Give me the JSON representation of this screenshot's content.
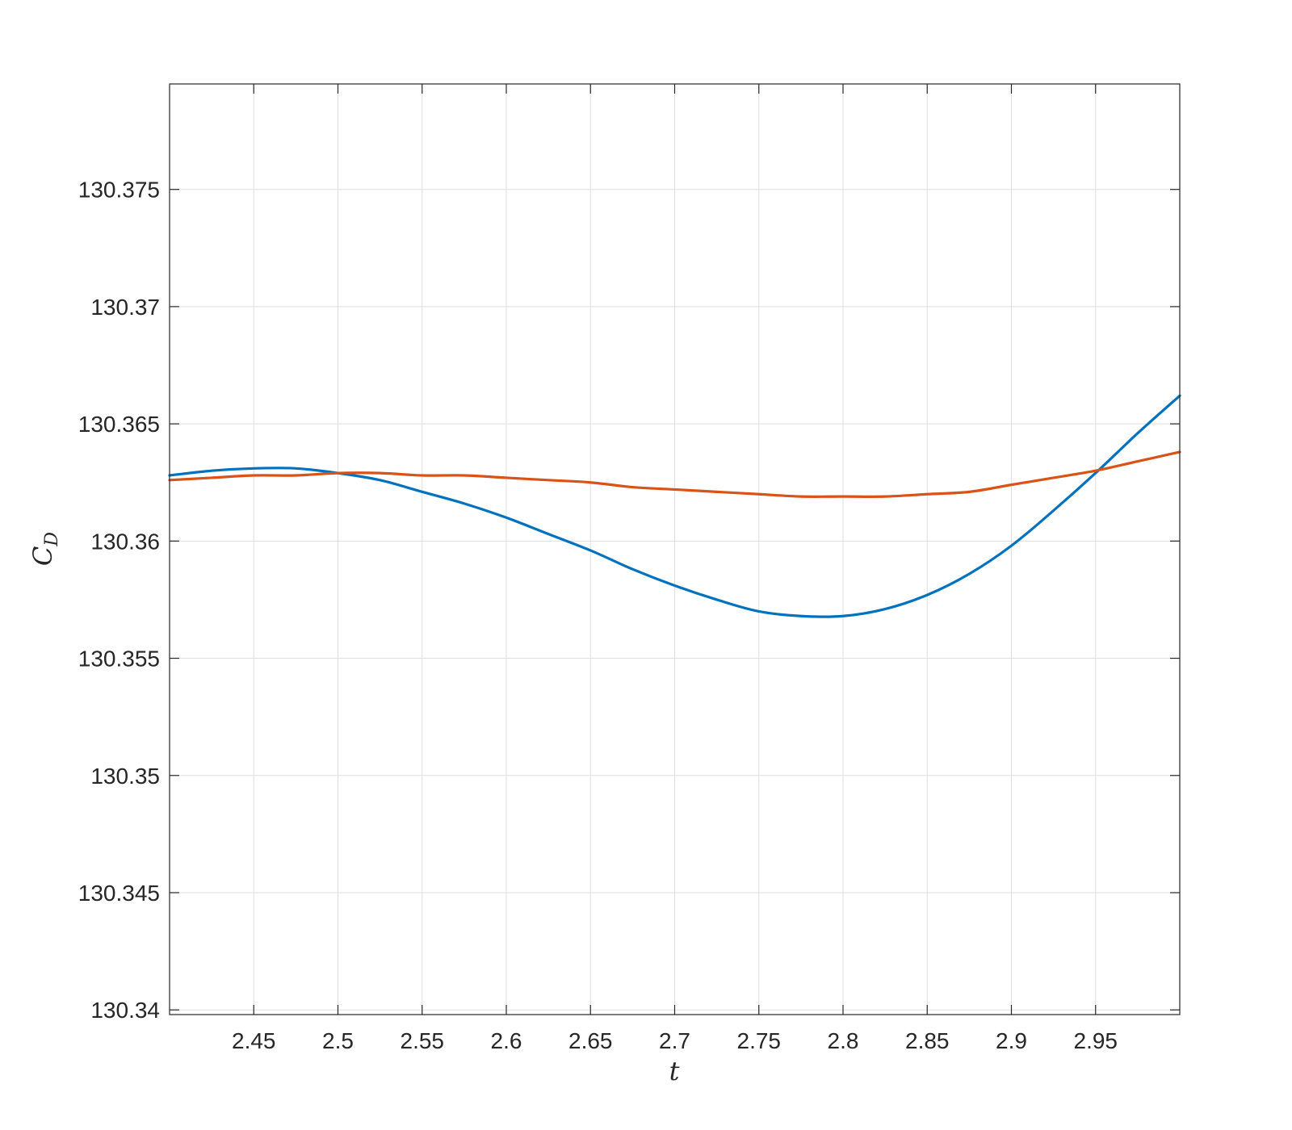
{
  "chart_data": {
    "type": "line",
    "title": "",
    "xlabel": "t",
    "ylabel_main": "C",
    "ylabel_sub": "D",
    "xlim": [
      2.4,
      3.0
    ],
    "ylim": [
      130.3398,
      130.3795
    ],
    "grid": true,
    "legend": "none",
    "xticks": [
      2.45,
      2.5,
      2.55,
      2.6,
      2.65,
      2.7,
      2.75,
      2.8,
      2.85,
      2.9,
      2.95
    ],
    "xtick_labels": [
      "2.45",
      "2.5",
      "2.55",
      "2.6",
      "2.65",
      "2.7",
      "2.75",
      "2.8",
      "2.85",
      "2.9",
      "2.95"
    ],
    "yticks": [
      130.34,
      130.345,
      130.35,
      130.355,
      130.36,
      130.365,
      130.37,
      130.375
    ],
    "ytick_labels": [
      "130.34",
      "130.345",
      "130.35",
      "130.355",
      "130.36",
      "130.365",
      "130.37",
      "130.375"
    ],
    "series": [
      {
        "color": "#0072bd",
        "x": [
          2.4,
          2.425,
          2.45,
          2.475,
          2.5,
          2.525,
          2.55,
          2.575,
          2.6,
          2.625,
          2.65,
          2.675,
          2.7,
          2.725,
          2.75,
          2.775,
          2.8,
          2.825,
          2.85,
          2.875,
          2.9,
          2.925,
          2.95,
          2.975,
          3.0
        ],
        "y": [
          130.3628,
          130.363,
          130.3631,
          130.3631,
          130.3629,
          130.3626,
          130.3621,
          130.3616,
          130.361,
          130.3603,
          130.3596,
          130.3588,
          130.3581,
          130.3575,
          130.357,
          130.3568,
          130.3568,
          130.3571,
          130.3577,
          130.3586,
          130.3598,
          130.3613,
          130.3629,
          130.3646,
          130.3662
        ]
      },
      {
        "color": "#d95319",
        "x": [
          2.4,
          2.425,
          2.45,
          2.475,
          2.5,
          2.525,
          2.55,
          2.575,
          2.6,
          2.625,
          2.65,
          2.675,
          2.7,
          2.725,
          2.75,
          2.775,
          2.8,
          2.825,
          2.85,
          2.875,
          2.9,
          2.925,
          2.95,
          2.975,
          3.0
        ],
        "y": [
          130.3626,
          130.3627,
          130.3628,
          130.3628,
          130.3629,
          130.3629,
          130.3628,
          130.3628,
          130.3627,
          130.3626,
          130.3625,
          130.3623,
          130.3622,
          130.3621,
          130.362,
          130.3619,
          130.3619,
          130.3619,
          130.362,
          130.3621,
          130.3624,
          130.3627,
          130.363,
          130.3634,
          130.3638
        ]
      }
    ]
  }
}
